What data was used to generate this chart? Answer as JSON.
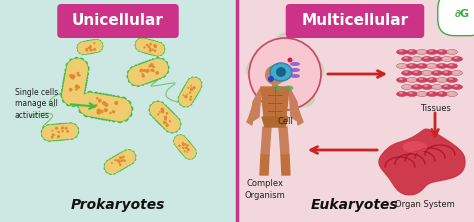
{
  "fig_width": 4.74,
  "fig_height": 2.22,
  "dpi": 100,
  "bg_left": "#cde8e2",
  "bg_right": "#f2d8dc",
  "divider_color": "#cc3388",
  "title_left": "Unicellular",
  "title_right": "Multicellular",
  "title_bg": "#cc3388",
  "title_fg": "#ffffff",
  "label_left": "Prokaryotes",
  "label_right": "Eukaryotes",
  "label_color": "#111111",
  "annotation_left": "Single cells\nmanage all\nactivities",
  "annotation_color": "#222222",
  "cell_label": "Cell",
  "tissues_label": "Tissues",
  "complex_label": "Complex\nOrganism",
  "organ_label": "Organ System",
  "arrow_color": "#cc2222",
  "bacteria_body": "#f0cc70",
  "bacteria_outline": "#44bb44",
  "bacteria_dot": "#e08830",
  "logo_green": "#44aa44"
}
